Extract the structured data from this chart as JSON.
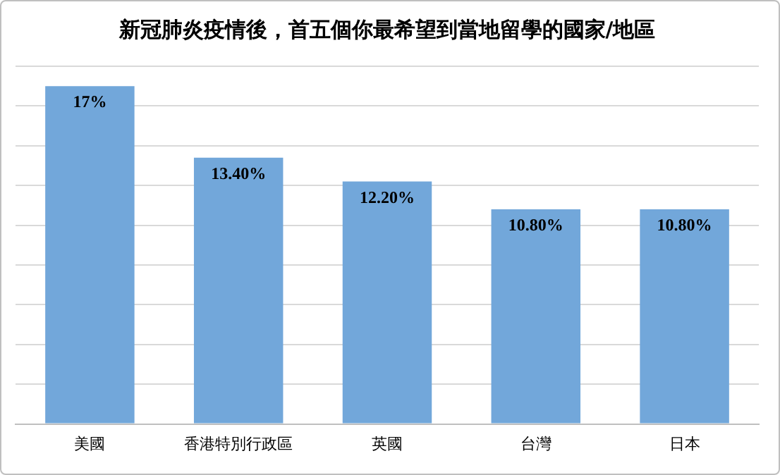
{
  "chart_data": {
    "type": "bar",
    "title": "新冠肺炎疫情後，首五個你最希望到當地留學的國家/地區",
    "categories": [
      "美國",
      "香港特別行政區",
      "英國",
      "台灣",
      "日本"
    ],
    "values": [
      17,
      13.4,
      12.2,
      10.8,
      10.8
    ],
    "value_labels": [
      "17%",
      "13.40%",
      "12.20%",
      "10.80%",
      "10.80%"
    ],
    "color": "#72a7da",
    "ylim": [
      0,
      18
    ],
    "yticks": [
      {
        "value": 0,
        "label": null
      },
      {
        "value": 2,
        "label": null
      },
      {
        "value": 4,
        "label": null
      },
      {
        "value": 6,
        "label": null
      },
      {
        "value": 8,
        "label": null
      },
      {
        "value": 10,
        "label": null
      },
      {
        "value": 12,
        "label": null
      },
      {
        "value": 14,
        "label": null
      },
      {
        "value": 16,
        "label": null
      },
      {
        "value": 18,
        "label": null
      }
    ],
    "grid": "y",
    "tick_labels": "x",
    "legend": false
  }
}
